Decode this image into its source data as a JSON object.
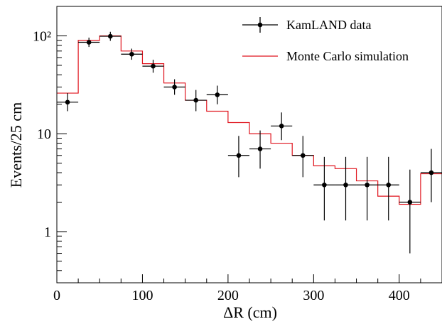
{
  "chart_data": {
    "type": "histogram",
    "xlabel": "ΔR (cm)",
    "ylabel": "Events/25 cm",
    "xlim": [
      0,
      450
    ],
    "ylim": [
      0.3,
      200
    ],
    "yscale": "log",
    "grid": false,
    "legend_position": "top-right",
    "x_ticks": [
      "0",
      "100",
      "200",
      "300",
      "400"
    ],
    "y_ticks": [
      "1",
      "10",
      "10²"
    ],
    "series": [
      {
        "name": "KamLAND data",
        "kind": "points-with-errors",
        "color": "#000000",
        "bin_width": 25,
        "x": [
          12.5,
          37.5,
          62.5,
          87.5,
          112.5,
          137.5,
          162.5,
          187.5,
          212.5,
          237.5,
          262.5,
          287.5,
          312.5,
          337.5,
          362.5,
          387.5,
          412.5,
          437.5
        ],
        "y": [
          21,
          86,
          99,
          65,
          49,
          30,
          22,
          25,
          6,
          7,
          12,
          6,
          3,
          3,
          3,
          3,
          2,
          4
        ],
        "y_err_low": [
          4,
          9,
          10,
          8,
          7,
          5,
          5,
          5,
          2.4,
          2.6,
          3.4,
          2.4,
          1.7,
          1.7,
          1.7,
          1.7,
          1.4,
          2
        ],
        "y_err_high": [
          5,
          10,
          11,
          9,
          8,
          6,
          6,
          6,
          3.5,
          3.8,
          4.5,
          3.5,
          2.8,
          2.8,
          2.8,
          2.8,
          2.3,
          3
        ]
      },
      {
        "name": "Monte Carlo simulation",
        "kind": "step",
        "color": "#e0141e",
        "bin_edges": [
          0,
          25,
          50,
          75,
          100,
          125,
          150,
          175,
          200,
          225,
          250,
          275,
          300,
          325,
          350,
          375,
          400,
          425,
          450
        ],
        "values": [
          26,
          90,
          100,
          70,
          52,
          33,
          22,
          17,
          13,
          10,
          8,
          6,
          4.7,
          4.4,
          3.3,
          2.3,
          1.9,
          3.9
        ]
      }
    ]
  }
}
